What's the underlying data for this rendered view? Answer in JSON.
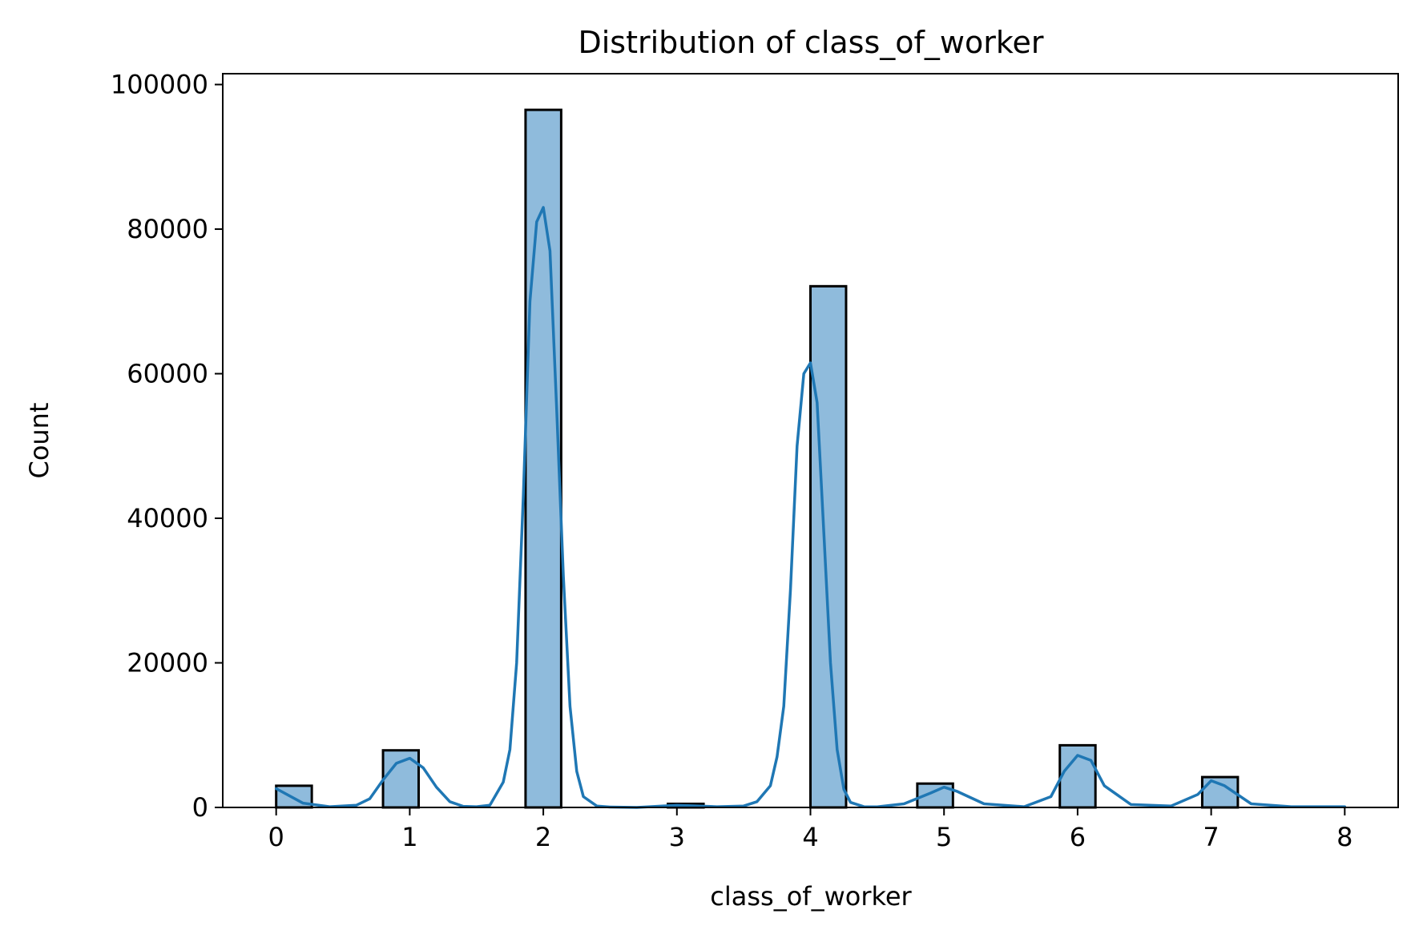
{
  "chart_data": {
    "type": "bar",
    "title": "Distribution of class_of_worker",
    "xlabel": "class_of_worker",
    "ylabel": "Count",
    "xlim": [
      -0.4,
      8.4
    ],
    "ylim": [
      0,
      101500
    ],
    "xticks": [
      0,
      1,
      2,
      3,
      4,
      5,
      6,
      7,
      8
    ],
    "yticks": [
      0,
      20000,
      40000,
      60000,
      80000,
      100000
    ],
    "grid": false,
    "legend": "none",
    "bar_width": 0.2667,
    "bar_fill": "#8fbbdc",
    "bar_edge": "#000000",
    "kde_color": "#1f77b4",
    "bins": [
      {
        "left": 0.0,
        "count": 3000
      },
      {
        "left": 0.8,
        "count": 7900
      },
      {
        "left": 1.867,
        "count": 96500
      },
      {
        "left": 2.933,
        "count": 500
      },
      {
        "left": 4.0,
        "count": 72100
      },
      {
        "left": 4.8,
        "count": 3300
      },
      {
        "left": 5.867,
        "count": 8600
      },
      {
        "left": 6.933,
        "count": 4200
      }
    ],
    "kde": {
      "x": [
        0,
        0.2,
        0.4,
        0.6,
        0.7,
        0.8,
        0.9,
        1.0,
        1.1,
        1.2,
        1.3,
        1.4,
        1.5,
        1.6,
        1.7,
        1.75,
        1.8,
        1.85,
        1.9,
        1.95,
        2.0,
        2.05,
        2.1,
        2.15,
        2.2,
        2.25,
        2.3,
        2.4,
        2.5,
        2.7,
        3.0,
        3.3,
        3.5,
        3.6,
        3.7,
        3.75,
        3.8,
        3.85,
        3.9,
        3.95,
        4.0,
        4.05,
        4.1,
        4.15,
        4.2,
        4.25,
        4.3,
        4.4,
        4.5,
        4.7,
        4.9,
        5.0,
        5.1,
        5.3,
        5.6,
        5.8,
        5.9,
        6.0,
        6.1,
        6.2,
        6.4,
        6.7,
        6.9,
        7.0,
        7.1,
        7.3,
        7.6,
        8.0
      ],
      "y": [
        2600,
        600,
        100,
        300,
        1200,
        3800,
        6100,
        6800,
        5500,
        2800,
        800,
        150,
        100,
        300,
        3500,
        8000,
        20000,
        43000,
        70000,
        81000,
        83000,
        77000,
        55000,
        32000,
        14000,
        5000,
        1500,
        200,
        50,
        0,
        300,
        100,
        200,
        800,
        3000,
        7000,
        14000,
        30000,
        50000,
        60000,
        61500,
        56000,
        38000,
        20000,
        8000,
        2500,
        700,
        100,
        80,
        500,
        2000,
        2800,
        2200,
        500,
        100,
        1500,
        5000,
        7200,
        6500,
        3000,
        400,
        200,
        1800,
        3700,
        3000,
        500,
        100,
        100
      ]
    }
  }
}
